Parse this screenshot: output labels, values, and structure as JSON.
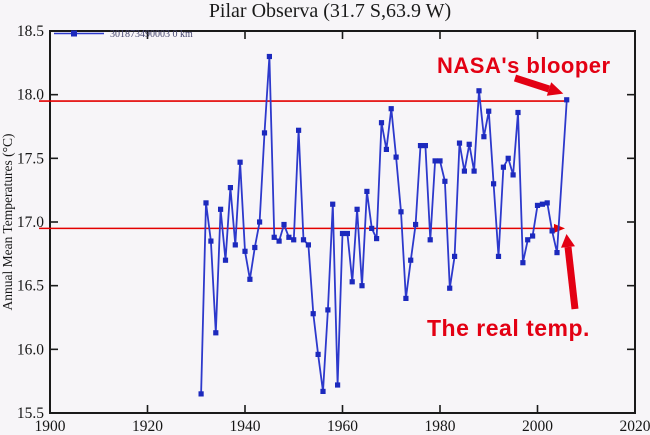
{
  "title": "Pilar Observa (31.7 S,63.9 W)",
  "legend": {
    "station_label": "301873490003  0 km"
  },
  "annotations": {
    "blooper": "NASA's blooper",
    "real_temp": "The real temp."
  },
  "colors": {
    "line_blue": "#2d39cc",
    "marker_blue": "#1c29bd",
    "reference_red": "#e30000",
    "annotation_red": "#e30013",
    "axis_black": "#1a1a1a",
    "background": "#f7f5f8"
  },
  "chart_data": {
    "type": "line",
    "title": "Pilar Observa (31.7 S,63.9 W)",
    "xlabel": "",
    "ylabel": "Annual Mean Temperatures (°C)",
    "xlim": [
      1900,
      2020
    ],
    "ylim": [
      15.5,
      18.5
    ],
    "xticks": [
      1900,
      1920,
      1940,
      1960,
      1980,
      2000,
      2020
    ],
    "yticks": [
      15.5,
      16.0,
      16.5,
      17.0,
      17.5,
      18.0,
      18.5
    ],
    "grid": false,
    "legend_position": "top-left",
    "series": [
      {
        "name": "301873490003  0 km",
        "start_year": 1931,
        "values": [
          15.65,
          17.15,
          16.85,
          16.13,
          17.1,
          16.7,
          17.27,
          16.82,
          17.47,
          16.77,
          16.55,
          16.8,
          17.0,
          17.7,
          18.3,
          16.88,
          16.85,
          16.98,
          16.88,
          16.86,
          17.72,
          16.86,
          16.82,
          16.28,
          15.96,
          15.67,
          16.31,
          17.14,
          15.72,
          16.91,
          16.91,
          16.53,
          17.1,
          16.5,
          17.24,
          16.95,
          16.87,
          17.78,
          17.57,
          17.89,
          17.51,
          17.08,
          16.4,
          16.7,
          16.98,
          17.6,
          17.6,
          16.86,
          17.48,
          17.48,
          17.32,
          16.48,
          16.73,
          17.62,
          17.4,
          17.61,
          17.4,
          18.03,
          17.67,
          17.87,
          17.3,
          16.73,
          17.43,
          17.5,
          17.37,
          17.86,
          16.68,
          16.86,
          16.89,
          17.13,
          17.14,
          17.15,
          16.93,
          16.76,
          null,
          17.96
        ]
      }
    ],
    "reference_lines": [
      {
        "value": 17.95,
        "label": "NASA's blooper"
      },
      {
        "value": 16.95,
        "label": "The real temp."
      }
    ]
  }
}
